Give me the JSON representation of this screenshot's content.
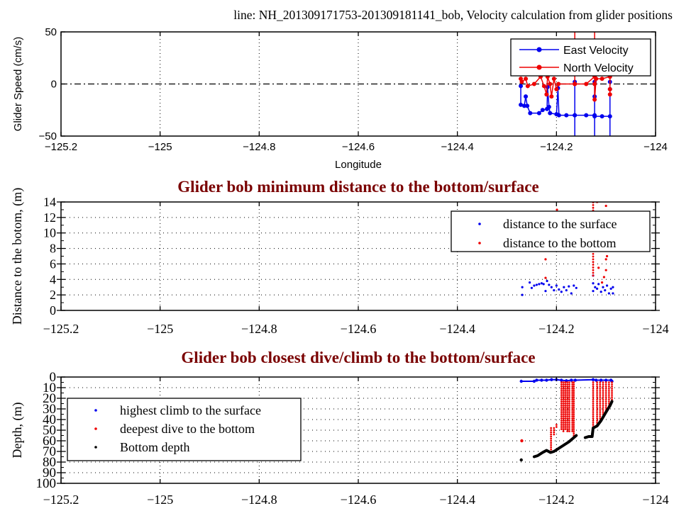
{
  "figure_title": "line: NH_201309171753-201309181141_bob, Velocity calculation from glider positions",
  "colors": {
    "blue": "#0000ee",
    "red": "#ee0000",
    "black": "#000000",
    "title": "#7a0000"
  },
  "chart_data": [
    {
      "type": "line",
      "title": "",
      "xlabel": "Longitude",
      "ylabel": "Glider Speed (cm/s)",
      "xlim": [
        -125.2,
        -124
      ],
      "ylim": [
        -50,
        50
      ],
      "xticks": [
        -125.2,
        -125,
        -124.8,
        -124.6,
        -124.4,
        -124.2,
        -124
      ],
      "xtick_labels": [
        "−125.2",
        "−125",
        "−124.8",
        "−124.6",
        "−124.4",
        "−124.2",
        "−124"
      ],
      "yticks": [
        -50,
        0,
        50
      ],
      "ytick_labels": [
        "−50",
        "0",
        "50"
      ],
      "grid": "vertical dotted, dash-dot zero line",
      "legend_position": "top-right",
      "series": [
        {
          "name": "East Velocity",
          "color": "#0000ee",
          "points": [
            [
              -124.272,
              -2
            ],
            [
              -124.272,
              -20
            ],
            [
              -124.265,
              -21
            ],
            [
              -124.262,
              -12
            ],
            [
              -124.259,
              -21
            ],
            [
              -124.253,
              -28
            ],
            [
              -124.235,
              -28
            ],
            [
              -124.228,
              -25
            ],
            [
              -124.219,
              -24
            ],
            [
              -124.218,
              -3
            ],
            [
              -124.215,
              -22
            ],
            [
              -124.213,
              -28
            ],
            [
              -124.2,
              -29
            ],
            [
              -124.197,
              -4
            ],
            [
              -124.195,
              -30
            ],
            [
              -124.18,
              -30
            ],
            [
              -124.163,
              -30
            ],
            [
              -124.163,
              -80
            ],
            [
              -124.163,
              2
            ],
            [
              -124.163,
              -30
            ],
            [
              -124.14,
              -30
            ],
            [
              -124.123,
              -30
            ],
            [
              -124.123,
              -80
            ],
            [
              -124.123,
              2
            ],
            [
              -124.123,
              -12
            ],
            [
              -124.123,
              -31
            ],
            [
              -124.108,
              -31
            ],
            [
              -124.092,
              -31
            ],
            [
              -124.092,
              -80
            ],
            [
              -124.092,
              -5
            ],
            [
              -124.092,
              2
            ]
          ]
        },
        {
          "name": "North Velocity",
          "color": "#ee0000",
          "points": [
            [
              -124.272,
              5
            ],
            [
              -124.27,
              2
            ],
            [
              -124.262,
              5
            ],
            [
              -124.258,
              -2
            ],
            [
              -124.245,
              0
            ],
            [
              -124.232,
              7
            ],
            [
              -124.225,
              -2
            ],
            [
              -124.22,
              -10
            ],
            [
              -124.218,
              7
            ],
            [
              -124.213,
              0
            ],
            [
              -124.21,
              -12
            ],
            [
              -124.205,
              5
            ],
            [
              -124.2,
              -5
            ],
            [
              -124.196,
              0
            ],
            [
              -124.163,
              0
            ],
            [
              -124.163,
              80
            ],
            [
              -124.163,
              0
            ],
            [
              -124.14,
              0
            ],
            [
              -124.123,
              7
            ],
            [
              -124.123,
              80
            ],
            [
              -124.123,
              0
            ],
            [
              -124.123,
              -15
            ],
            [
              -124.12,
              5
            ],
            [
              -124.108,
              5
            ],
            [
              -124.092,
              7
            ],
            [
              -124.092,
              -10
            ],
            [
              -124.092,
              -5
            ]
          ]
        }
      ]
    },
    {
      "type": "scatter",
      "title": "Glider bob minimum distance to the bottom/surface",
      "xlabel": "",
      "ylabel": "Distance to the botom, (m)",
      "xlim": [
        -125.2,
        -124
      ],
      "ylim": [
        0,
        14
      ],
      "xticks": [
        -125.2,
        -125,
        -124.8,
        -124.6,
        -124.4,
        -124.2,
        -124
      ],
      "xtick_labels": [
        "−125.2",
        "−125",
        "−124.8",
        "−124.6",
        "−124.4",
        "−124.2",
        "−124"
      ],
      "yticks": [
        0,
        2,
        4,
        6,
        8,
        10,
        12,
        14
      ],
      "ytick_labels": [
        "0",
        "2",
        "4",
        "6",
        "8",
        "10",
        "12",
        "14"
      ],
      "grid": "dotted",
      "legend_position": "top-right",
      "series": [
        {
          "name": "distance to the surface",
          "color": "#0000ee",
          "points": [
            [
              -124.269,
              3
            ],
            [
              -124.269,
              2
            ],
            [
              -124.254,
              3.6
            ],
            [
              -124.25,
              2.9
            ],
            [
              -124.245,
              3.2
            ],
            [
              -124.24,
              3.3
            ],
            [
              -124.235,
              3.4
            ],
            [
              -124.23,
              3.5
            ],
            [
              -124.226,
              3.4
            ],
            [
              -124.222,
              2.5
            ],
            [
              -124.219,
              3.8
            ],
            [
              -124.215,
              3.3
            ],
            [
              -124.21,
              3.0
            ],
            [
              -124.205,
              2.6
            ],
            [
              -124.2,
              3.2
            ],
            [
              -124.195,
              2.7
            ],
            [
              -124.19,
              2.4
            ],
            [
              -124.185,
              3.0
            ],
            [
              -124.18,
              2.6
            ],
            [
              -124.175,
              3.1
            ],
            [
              -124.17,
              2.2
            ],
            [
              -124.165,
              3.2
            ],
            [
              -124.16,
              2.9
            ],
            [
              -124.126,
              2.5
            ],
            [
              -124.126,
              3.5
            ],
            [
              -124.126,
              4.5
            ],
            [
              -124.122,
              3.0
            ],
            [
              -124.118,
              2.8
            ],
            [
              -124.115,
              3.4
            ],
            [
              -124.11,
              2.4
            ],
            [
              -124.106,
              3.0
            ],
            [
              -124.102,
              2.6
            ],
            [
              -124.098,
              3.2
            ],
            [
              -124.094,
              2.2
            ],
            [
              -124.09,
              2.8
            ],
            [
              -124.086,
              3.0
            ],
            [
              -124.086,
              2.2
            ]
          ]
        },
        {
          "name": "distance to the bottom",
          "color": "#ee0000",
          "points": [
            [
              -124.222,
              6.6
            ],
            [
              -124.222,
              4.2
            ],
            [
              -124.199,
              13.0
            ],
            [
              -124.118,
              14.0
            ],
            [
              -124.1,
              13.5
            ],
            [
              -124.1,
              6.6
            ],
            [
              -124.098,
              7.0
            ],
            [
              -124.1,
              5.2
            ],
            [
              -124.115,
              5.5
            ],
            [
              -124.104,
              4.3
            ],
            [
              -124.108,
              3.6
            ]
          ],
          "columns": [
            [
              -124.126,
              4.5,
              14.4
            ]
          ]
        }
      ]
    },
    {
      "type": "scatter",
      "title": "Glider bob closest dive/climb to the bottom/surface",
      "xlabel": "",
      "ylabel": "Depth, (m)",
      "xlim": [
        -125.2,
        -124
      ],
      "ylim": [
        100,
        0
      ],
      "xticks": [
        -125.2,
        -125,
        -124.8,
        -124.6,
        -124.4,
        -124.2,
        -124
      ],
      "xtick_labels": [
        "−125.2",
        "−125",
        "−124.8",
        "−124.6",
        "−124.4",
        "−124.2",
        "−124"
      ],
      "yticks": [
        0,
        10,
        20,
        30,
        40,
        50,
        60,
        70,
        80,
        90,
        100
      ],
      "ytick_labels": [
        "0",
        "10",
        "20",
        "30",
        "40",
        "50",
        "60",
        "70",
        "80",
        "90",
        "100"
      ],
      "grid": "dotted",
      "legend_position": "left",
      "series": [
        {
          "name": "highest climb to the surface",
          "color": "#0000ee",
          "points": [
            [
              -124.271,
              4
            ],
            [
              -124.245,
              4
            ],
            [
              -124.24,
              3
            ],
            [
              -124.23,
              3
            ],
            [
              -124.22,
              3
            ],
            [
              -124.21,
              2.5
            ],
            [
              -124.2,
              2.5
            ],
            [
              -124.19,
              3
            ],
            [
              -124.18,
              3.5
            ],
            [
              -124.17,
              3
            ],
            [
              -124.162,
              3
            ],
            [
              -124.126,
              2.5
            ],
            [
              -124.12,
              3
            ],
            [
              -124.11,
              3
            ],
            [
              -124.1,
              3
            ],
            [
              -124.09,
              3
            ],
            [
              -124.088,
              4
            ]
          ],
          "connected": true
        },
        {
          "name": "deepest dive to the bottom",
          "color": "#ee0000",
          "points": [
            [
              -124.27,
              60
            ]
          ],
          "columns": [
            [
              -124.211,
              48,
              70
            ],
            [
              -124.205,
              48,
              55
            ],
            [
              -124.2,
              45,
              48
            ],
            [
              -124.19,
              5,
              50
            ],
            [
              -124.186,
              5,
              52
            ],
            [
              -124.182,
              5,
              50
            ],
            [
              -124.178,
              5,
              52
            ],
            [
              -124.174,
              5,
              52
            ],
            [
              -124.168,
              5,
              52
            ],
            [
              -124.165,
              5,
              55
            ],
            [
              -124.126,
              5,
              48
            ],
            [
              -124.118,
              5,
              46
            ],
            [
              -124.112,
              5,
              42
            ],
            [
              -124.106,
              5,
              38
            ],
            [
              -124.1,
              5,
              33
            ],
            [
              -124.094,
              5,
              28
            ],
            [
              -124.088,
              5,
              23
            ]
          ]
        },
        {
          "name": "Bottom depth",
          "color": "#000000",
          "points": [
            [
              -124.271,
              78
            ]
          ],
          "curves": [
            [
              [
                -124.245,
                75
              ],
              [
                -124.238,
                74
              ],
              [
                -124.228,
                71
              ],
              [
                -124.22,
                69
              ],
              [
                -124.212,
                71
              ],
              [
                -124.205,
                70
              ],
              [
                -124.195,
                67
              ],
              [
                -124.185,
                64
              ],
              [
                -124.175,
                61
              ],
              [
                -124.165,
                57
              ],
              [
                -124.16,
                55
              ]
            ],
            [
              [
                -124.142,
                57
              ],
              [
                -124.135,
                56
              ],
              [
                -124.128,
                56
              ],
              [
                -124.126,
                48
              ],
              [
                -124.118,
                46
              ],
              [
                -124.11,
                41
              ],
              [
                -124.1,
                33
              ],
              [
                -124.092,
                27
              ],
              [
                -124.088,
                23
              ]
            ]
          ]
        }
      ]
    }
  ]
}
